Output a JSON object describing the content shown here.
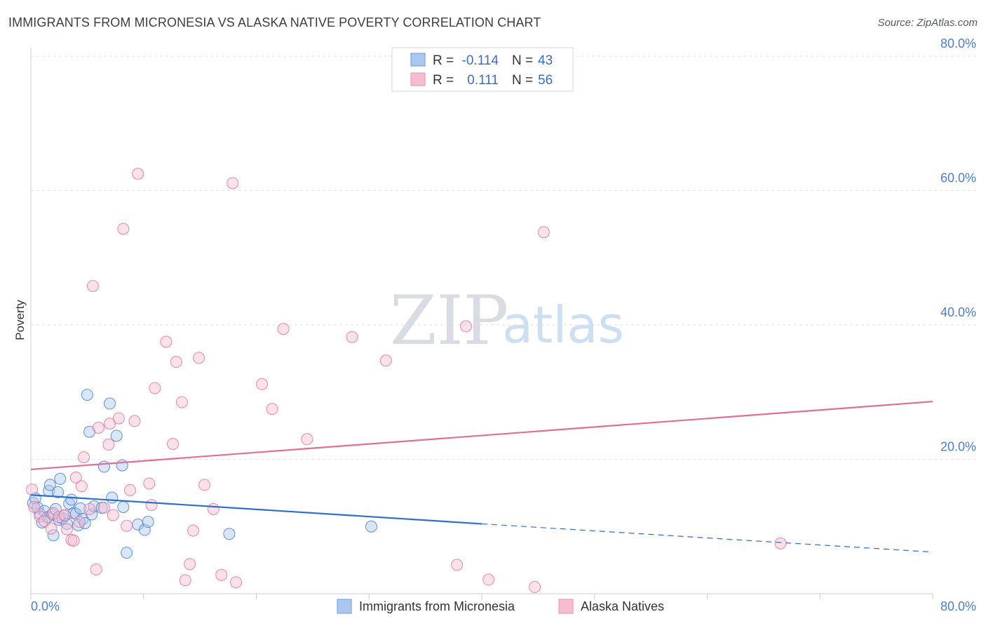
{
  "header": {
    "title": "IMMIGRANTS FROM MICRONESIA VS ALASKA NATIVE POVERTY CORRELATION CHART",
    "source": "Source: ZipAtlas.com"
  },
  "watermark": {
    "zip": "ZIP",
    "atlas": "atlas"
  },
  "colors": {
    "blue": "#4a7ec9",
    "blue_fill": "#aac8ef",
    "blue_line": "#2f6fcc",
    "pink": "#e2739a",
    "pink_fill": "#f6bcd0",
    "pink_line": "#e06f98",
    "grid": "#dcdfe4"
  },
  "legend": {
    "rows": [
      {
        "r_label": "R =",
        "r_value": "-0.114",
        "n_label": "N =",
        "n_value": "43"
      },
      {
        "r_label": "R =",
        "r_value": "0.111",
        "n_label": "N =",
        "n_value": "56"
      }
    ]
  },
  "chart_data": {
    "type": "scatter",
    "title": "IMMIGRANTS FROM MICRONESIA VS ALASKA NATIVE POVERTY CORRELATION CHART",
    "xlabel": "",
    "ylabel": "Poverty",
    "xlim": [
      0,
      80
    ],
    "ylim": [
      0,
      80
    ],
    "x_tick_labels": [
      "0.0%",
      "80.0%"
    ],
    "y_ticks": [
      20,
      40,
      60,
      80
    ],
    "y_tick_labels": [
      "20.0%",
      "40.0%",
      "60.0%",
      "80.0%"
    ],
    "grid": true,
    "legend_position": "top-center",
    "series": [
      {
        "name": "Immigrants from Micronesia",
        "color": "#4a7ec9",
        "R": -0.114,
        "N": 43,
        "trend": {
          "x_start": 0,
          "y_start": 14.7,
          "x_solid_end": 40,
          "y_solid_end": 10.4,
          "x_end": 80,
          "y_end": 6.2
        },
        "points": [
          [
            0.2,
            13.5
          ],
          [
            0.4,
            14.2
          ],
          [
            0.6,
            12.8
          ],
          [
            0.8,
            11.9
          ],
          [
            1.0,
            10.6
          ],
          [
            1.2,
            12.3
          ],
          [
            1.5,
            11.4
          ],
          [
            1.6,
            15.3
          ],
          [
            1.7,
            16.2
          ],
          [
            1.9,
            11.8
          ],
          [
            2.0,
            8.7
          ],
          [
            2.2,
            12.6
          ],
          [
            2.4,
            15.1
          ],
          [
            2.5,
            11.0
          ],
          [
            2.6,
            17.1
          ],
          [
            2.8,
            11.2
          ],
          [
            3.0,
            11.6
          ],
          [
            3.2,
            10.4
          ],
          [
            3.4,
            13.4
          ],
          [
            3.6,
            14.0
          ],
          [
            3.8,
            12.0
          ],
          [
            4.0,
            11.9
          ],
          [
            4.2,
            10.2
          ],
          [
            4.4,
            12.7
          ],
          [
            4.6,
            11.1
          ],
          [
            4.8,
            10.5
          ],
          [
            5.2,
            24.1
          ],
          [
            5.4,
            11.8
          ],
          [
            5.6,
            13.0
          ],
          [
            5.0,
            29.6
          ],
          [
            6.3,
            12.8
          ],
          [
            6.5,
            18.9
          ],
          [
            7.2,
            14.3
          ],
          [
            7.6,
            23.5
          ],
          [
            8.1,
            19.1
          ],
          [
            8.2,
            12.9
          ],
          [
            8.5,
            6.1
          ],
          [
            9.5,
            10.3
          ],
          [
            10.1,
            9.5
          ],
          [
            10.4,
            10.7
          ],
          [
            17.6,
            8.9
          ],
          [
            30.2,
            10.0
          ],
          [
            7.0,
            28.3
          ]
        ]
      },
      {
        "name": "Alaska Natives",
        "color": "#e2739a",
        "R": 0.111,
        "N": 56,
        "trend": {
          "x_start": 0,
          "y_start": 18.5,
          "x_end": 80,
          "y_end": 28.6
        },
        "points": [
          [
            0.1,
            15.5
          ],
          [
            0.3,
            12.9
          ],
          [
            0.8,
            11.5
          ],
          [
            1.2,
            10.8
          ],
          [
            1.8,
            9.7
          ],
          [
            2.0,
            12.0
          ],
          [
            2.5,
            11.4
          ],
          [
            3.0,
            11.7
          ],
          [
            3.2,
            9.6
          ],
          [
            3.6,
            8.0
          ],
          [
            3.8,
            7.9
          ],
          [
            4.0,
            17.3
          ],
          [
            4.3,
            10.7
          ],
          [
            4.5,
            16.0
          ],
          [
            4.7,
            20.3
          ],
          [
            5.2,
            12.6
          ],
          [
            5.5,
            45.8
          ],
          [
            5.8,
            3.6
          ],
          [
            6.0,
            24.7
          ],
          [
            6.5,
            12.8
          ],
          [
            6.9,
            22.2
          ],
          [
            7.0,
            25.3
          ],
          [
            7.3,
            11.7
          ],
          [
            7.8,
            26.1
          ],
          [
            8.2,
            54.3
          ],
          [
            8.5,
            10.1
          ],
          [
            8.8,
            15.4
          ],
          [
            9.2,
            25.7
          ],
          [
            9.5,
            62.5
          ],
          [
            10.5,
            16.4
          ],
          [
            10.7,
            13.2
          ],
          [
            11.0,
            30.6
          ],
          [
            12.0,
            37.5
          ],
          [
            12.6,
            22.3
          ],
          [
            12.9,
            34.5
          ],
          [
            13.4,
            28.5
          ],
          [
            13.7,
            2.0
          ],
          [
            14.1,
            4.4
          ],
          [
            14.4,
            9.4
          ],
          [
            14.9,
            35.1
          ],
          [
            15.4,
            16.2
          ],
          [
            16.2,
            12.6
          ],
          [
            16.9,
            2.8
          ],
          [
            17.9,
            61.1
          ],
          [
            18.2,
            1.7
          ],
          [
            20.5,
            31.2
          ],
          [
            21.4,
            27.5
          ],
          [
            22.4,
            39.4
          ],
          [
            24.5,
            23.0
          ],
          [
            28.5,
            38.2
          ],
          [
            31.5,
            34.7
          ],
          [
            37.8,
            4.3
          ],
          [
            38.6,
            39.8
          ],
          [
            40.6,
            2.1
          ],
          [
            44.7,
            1.0
          ],
          [
            45.5,
            53.8
          ],
          [
            66.5,
            7.5
          ]
        ]
      }
    ]
  },
  "bottom_legend": {
    "items": [
      {
        "label": "Immigrants from Micronesia"
      },
      {
        "label": "Alaska Natives"
      }
    ]
  }
}
